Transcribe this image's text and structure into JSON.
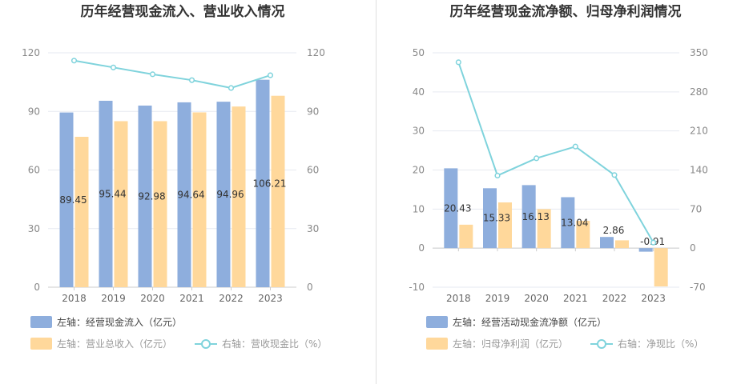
{
  "colors": {
    "bar_blue": "#8eaedd",
    "bar_orange": "#ffd89b",
    "line_cyan": "#7fd3dc",
    "grid": "#e6e9f0",
    "axis": "#cccccc",
    "divider": "#e0e0e0"
  },
  "chart_data": [
    {
      "type": "bar",
      "title": "历年经营现金流入、营业收入情况",
      "categories": [
        "2018",
        "2019",
        "2020",
        "2021",
        "2022",
        "2023"
      ],
      "left_axis": {
        "ticks": [
          "0",
          "30",
          "60",
          "90",
          "120"
        ],
        "range": [
          0,
          120
        ]
      },
      "right_axis": {
        "ticks": [
          "0",
          "30",
          "60",
          "90",
          "120"
        ],
        "range": [
          0,
          120
        ]
      },
      "series": [
        {
          "name": "左轴：经营现金流入（亿元）",
          "kind": "bar",
          "axis": "left",
          "values": [
            89.45,
            95.44,
            92.98,
            94.64,
            94.96,
            106.21
          ],
          "labels": [
            "89.45",
            "95.44",
            "92.98",
            "94.64",
            "94.96",
            "106.21"
          ]
        },
        {
          "name": "左轴：营业总收入（亿元）",
          "kind": "bar",
          "axis": "left",
          "values": [
            77,
            85,
            85,
            89.5,
            92.5,
            98
          ]
        },
        {
          "name": "右轴：营收现金比（%）",
          "kind": "line",
          "axis": "right",
          "values": [
            116,
            112.5,
            109,
            106,
            102,
            108.5
          ]
        }
      ],
      "grid": true
    },
    {
      "type": "bar",
      "title": "历年经营现金流净额、归母净利润情况",
      "categories": [
        "2018",
        "2019",
        "2020",
        "2021",
        "2022",
        "2023"
      ],
      "left_axis": {
        "ticks": [
          "-10",
          "0",
          "10",
          "20",
          "30",
          "40",
          "50"
        ],
        "range": [
          -10,
          50
        ]
      },
      "right_axis": {
        "ticks": [
          "-70",
          "0",
          "70",
          "140",
          "210",
          "280",
          "350"
        ],
        "range": [
          -70,
          350
        ]
      },
      "series": [
        {
          "name": "左轴：经营活动现金流净额（亿元）",
          "kind": "bar",
          "axis": "left",
          "values": [
            20.43,
            15.33,
            16.13,
            13.04,
            2.86,
            -0.91
          ],
          "labels": [
            "20.43",
            "15.33",
            "16.13",
            "13.04",
            "2.86",
            "-0.91"
          ]
        },
        {
          "name": "左轴：归母净利润（亿元）",
          "kind": "bar",
          "axis": "left",
          "values": [
            6,
            11.7,
            10,
            7,
            2,
            -9.8
          ]
        },
        {
          "name": "右轴：净现比（%）",
          "kind": "line",
          "axis": "right",
          "values": [
            333,
            130,
            161,
            182,
            131,
            10
          ]
        }
      ],
      "grid": true
    }
  ]
}
